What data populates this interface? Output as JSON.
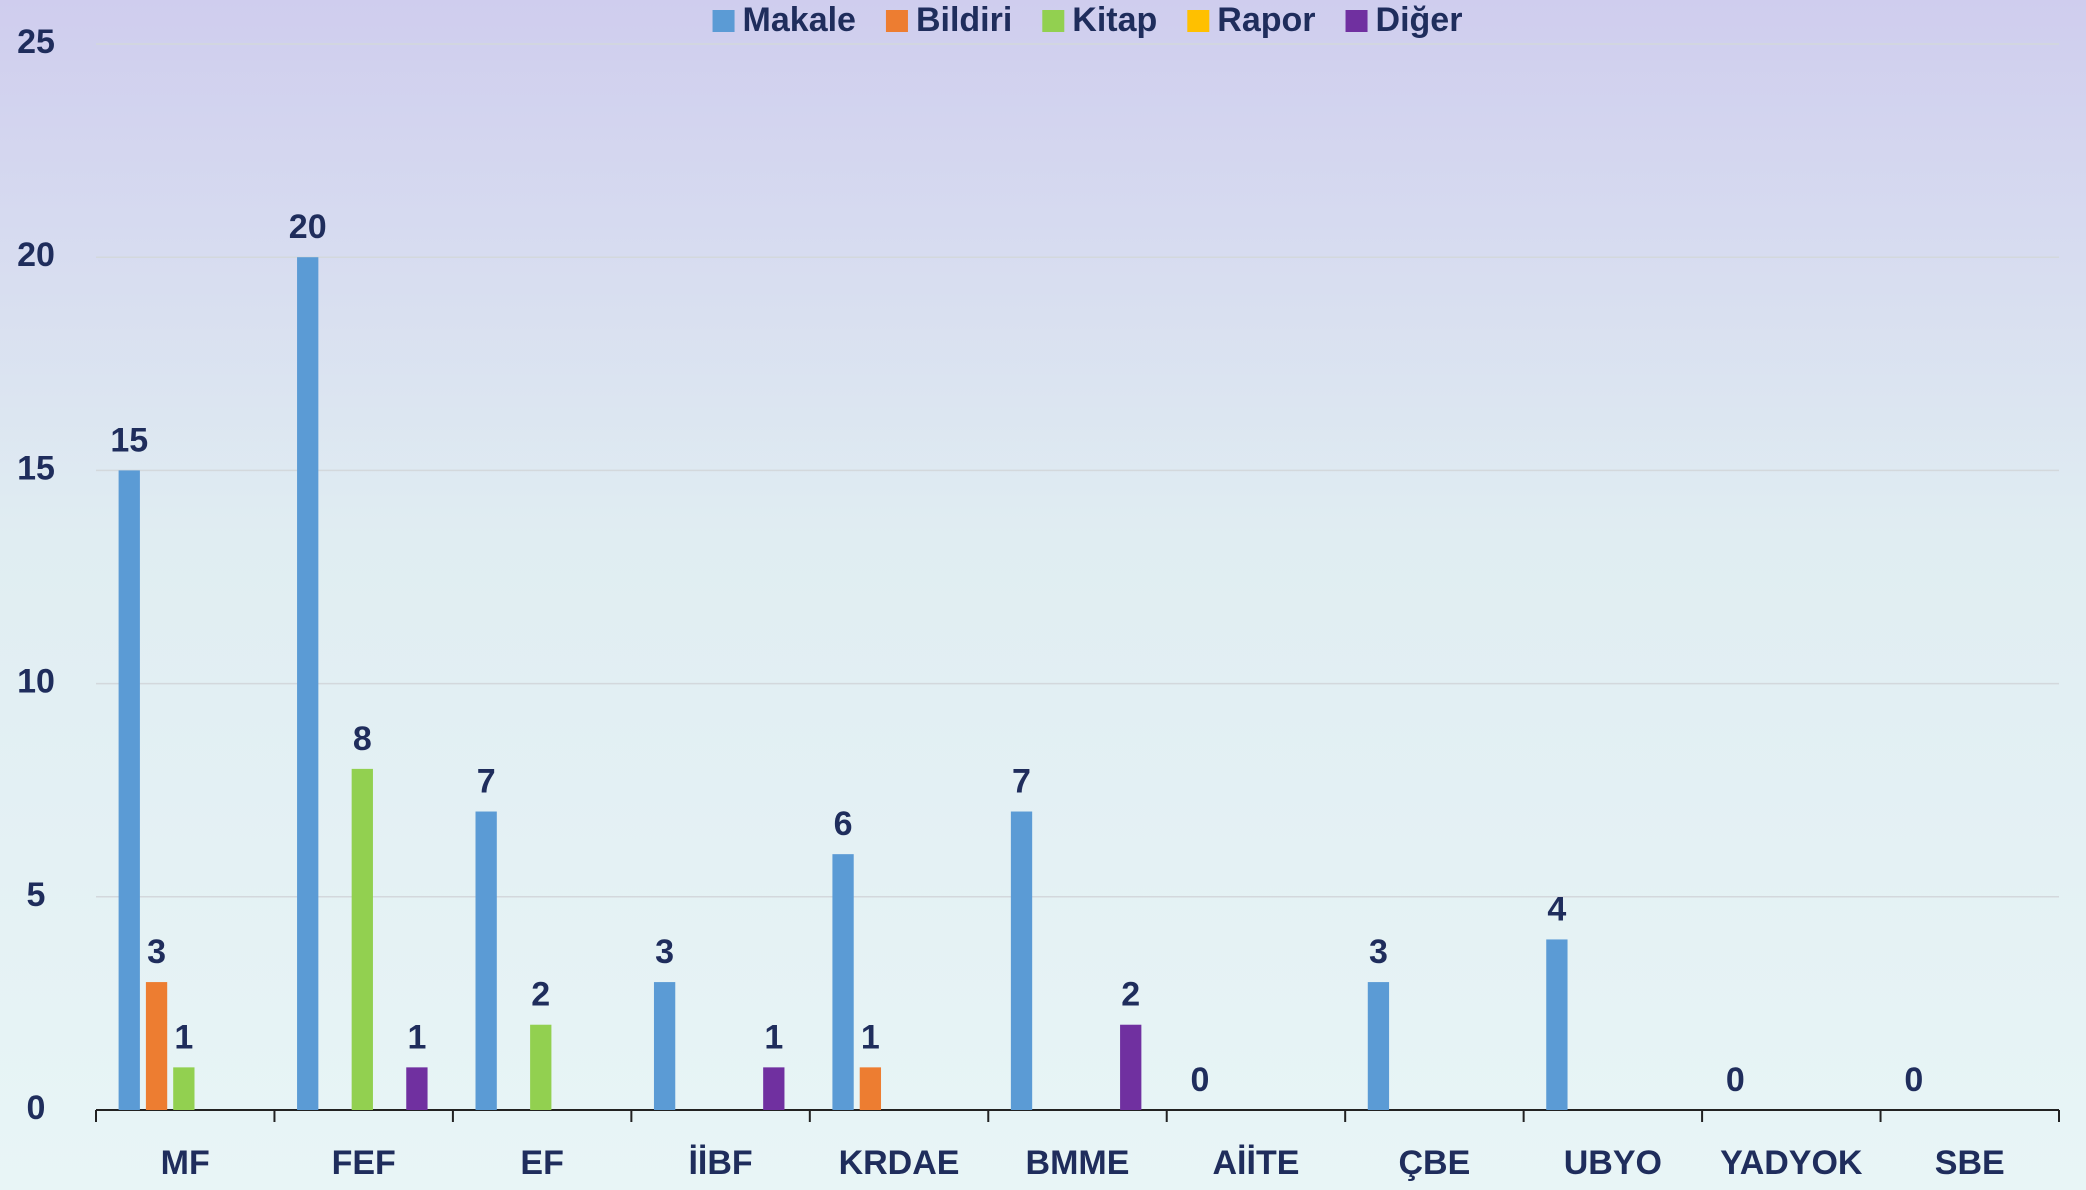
{
  "chart_data": {
    "type": "bar",
    "categories": [
      "MF",
      "FEF",
      "EF",
      "İİBF",
      "KRDAE",
      "BMME",
      "AİİTE",
      "ÇBE",
      "UBYO",
      "YADYOK",
      "SBE"
    ],
    "series": [
      {
        "name": "Makale",
        "color": "#5b9bd5",
        "values": [
          15,
          20,
          7,
          3,
          6,
          7,
          0,
          3,
          4,
          0,
          0
        ]
      },
      {
        "name": "Bildiri",
        "color": "#ed7d31",
        "values": [
          3,
          0,
          0,
          0,
          1,
          0,
          0,
          0,
          0,
          0,
          0
        ],
        "value_labels": [
          "3",
          null,
          null,
          null,
          "1",
          null,
          null,
          null,
          null,
          null,
          null
        ]
      },
      {
        "name": "Kitap",
        "color": "#92d050",
        "values": [
          1,
          8,
          2,
          0,
          0,
          0,
          0,
          0,
          0,
          0,
          0
        ],
        "value_labels": [
          "1",
          "8",
          "2",
          null,
          null,
          null,
          null,
          null,
          null,
          null,
          null
        ]
      },
      {
        "name": "Rapor",
        "color": "#ffc000",
        "values": [
          0,
          0,
          0,
          0,
          0,
          0,
          0,
          0,
          0,
          0,
          0
        ],
        "value_labels": [
          null,
          null,
          null,
          null,
          null,
          null,
          null,
          null,
          null,
          null,
          null
        ]
      },
      {
        "name": "Diğer",
        "color": "#7030a0",
        "values": [
          0,
          1,
          0,
          1,
          0,
          2,
          0,
          0,
          0,
          0,
          0
        ],
        "value_labels": [
          null,
          "1",
          null,
          "1",
          null,
          "2",
          null,
          null,
          null,
          null,
          null
        ]
      }
    ],
    "ylim": [
      0,
      25
    ],
    "yticks": [
      0,
      5,
      10,
      15,
      20,
      25
    ],
    "grid": true,
    "legend": "top"
  }
}
